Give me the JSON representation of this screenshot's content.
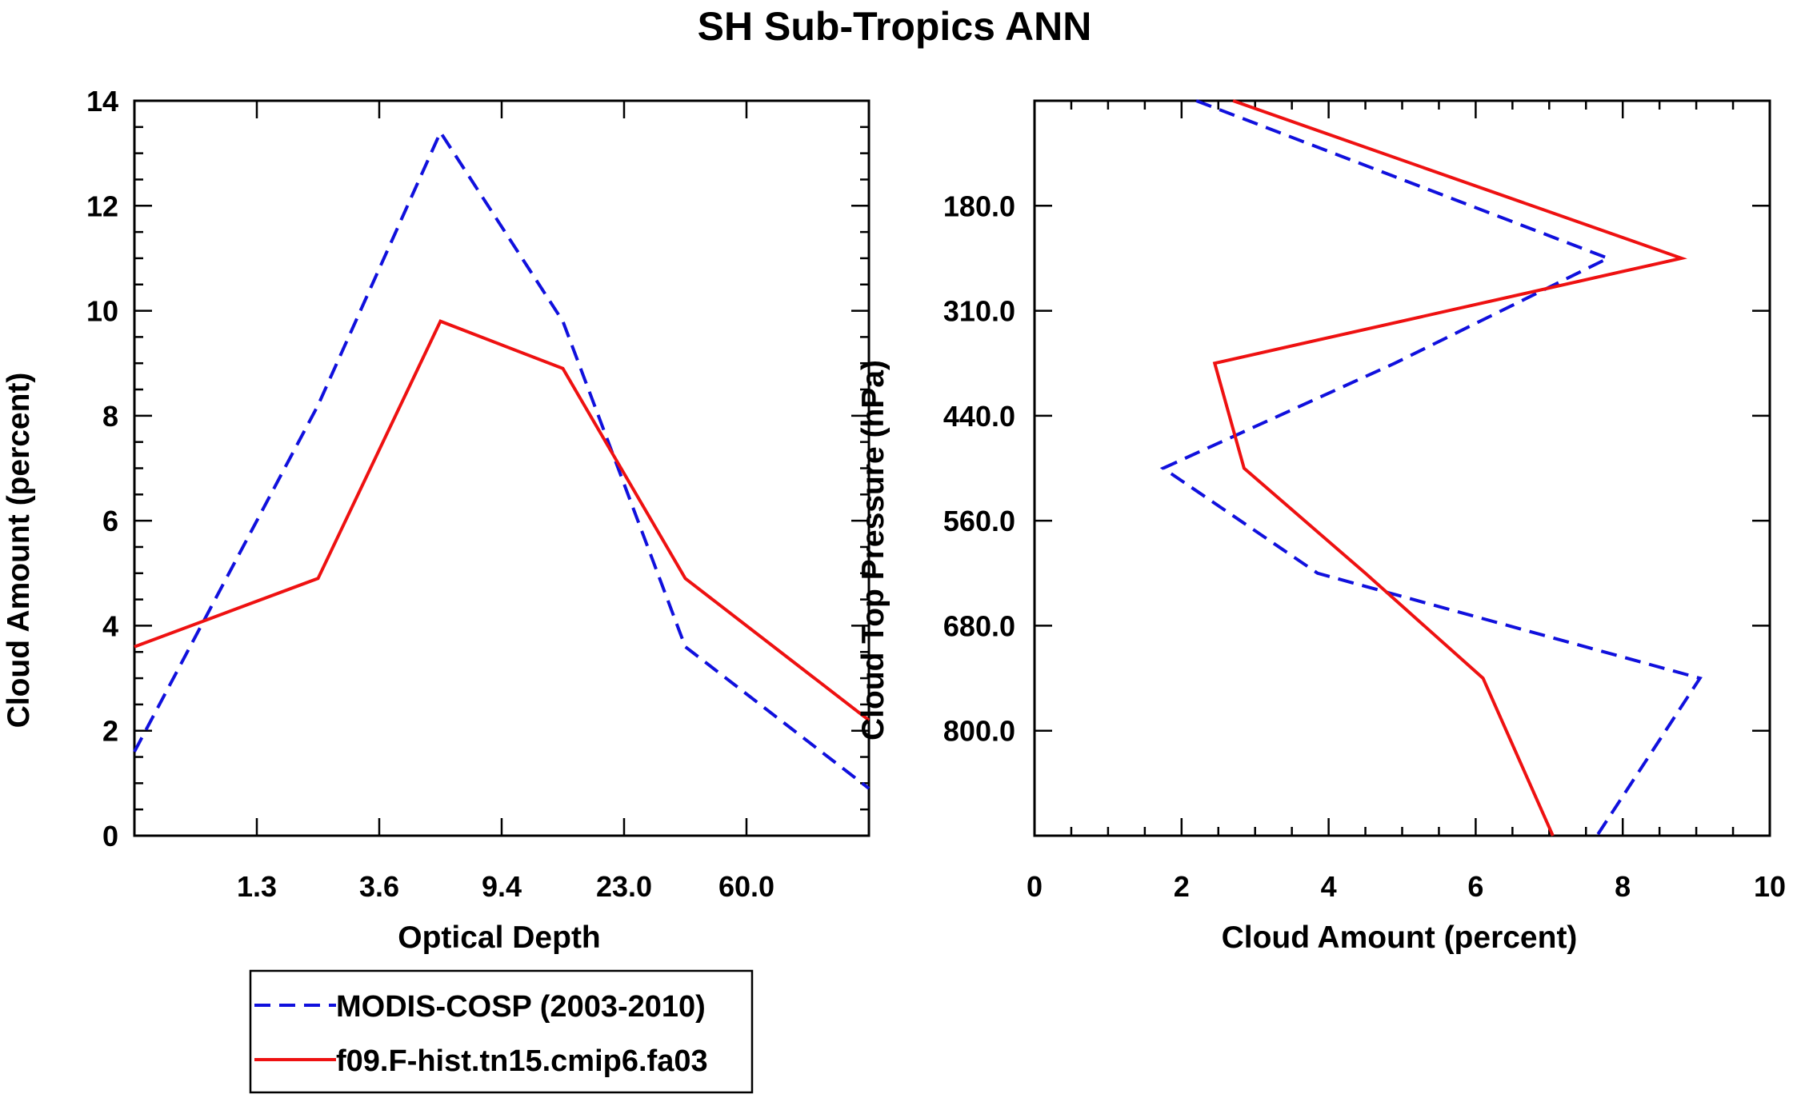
{
  "figure_title": "SH Sub-Tropics ANN",
  "colors": {
    "obs": "#1010dd",
    "model": "#ee1111",
    "axes": "#000000"
  },
  "chart_data": [
    {
      "type": "line",
      "panel": "left",
      "xlabel": "Optical Depth",
      "ylabel": "Cloud Amount (percent)",
      "ylim": [
        0,
        14
      ],
      "yticks": [
        "0",
        "2",
        "4",
        "6",
        "8",
        "10",
        "12",
        "14"
      ],
      "xtick_labels": [
        "1.3",
        "3.6",
        "9.4",
        "23.0",
        "60.0"
      ],
      "series": [
        {
          "name": "MODIS-COSP (2003-2010)",
          "style": "dashed",
          "values": [
            1.6,
            8.2,
            13.4,
            9.8,
            3.6,
            0.9
          ]
        },
        {
          "name": "f09.F-hist.tn15.cmip6.fa03",
          "style": "solid",
          "values": [
            3.6,
            4.9,
            9.8,
            8.9,
            4.9,
            2.2
          ]
        }
      ]
    },
    {
      "type": "line",
      "panel": "right",
      "xlabel": "Cloud Amount (percent)",
      "ylabel": "Cloud Top Pressure (hPa)",
      "xlim": [
        0,
        10
      ],
      "xticks": [
        "0",
        "2",
        "4",
        "6",
        "8",
        "10"
      ],
      "ytick_labels": [
        "180.0",
        "310.0",
        "440.0",
        "560.0",
        "680.0",
        "800.0"
      ],
      "series": [
        {
          "name": "MODIS-COSP (2003-2010)",
          "style": "dashed",
          "values": [
            2.2,
            7.8,
            4.9,
            1.75,
            3.85,
            9.05,
            7.65
          ]
        },
        {
          "name": "f09.F-hist.tn15.cmip6.fa03",
          "style": "solid",
          "values": [
            2.7,
            8.8,
            2.45,
            2.85,
            4.5,
            6.1,
            7.05
          ]
        }
      ]
    }
  ],
  "legend": {
    "items": [
      "MODIS-COSP (2003-2010)",
      "f09.F-hist.tn15.cmip6.fa03"
    ]
  }
}
